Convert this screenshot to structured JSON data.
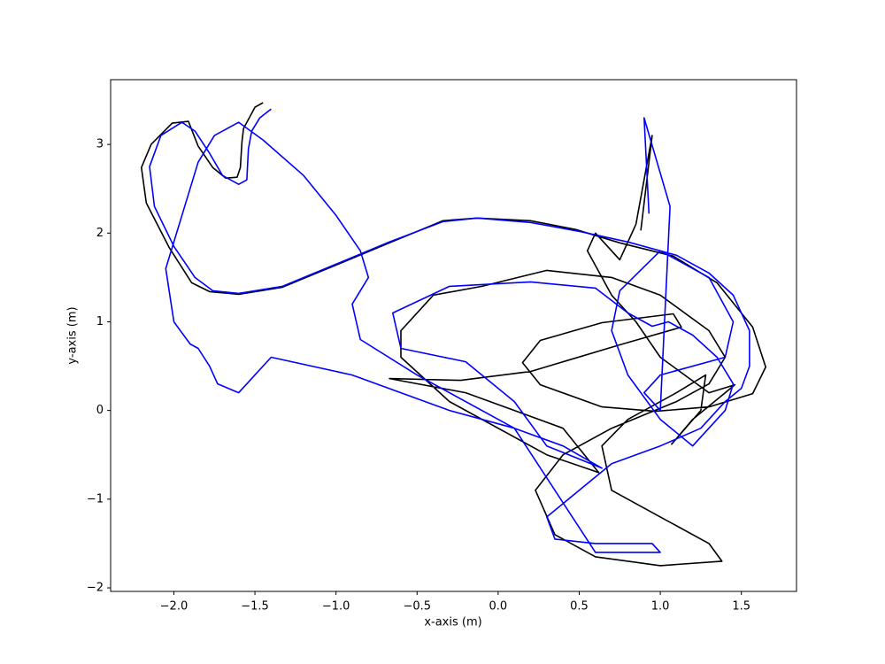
{
  "chart_data": {
    "type": "line",
    "x_label": "x-axis (m)",
    "y_label": "y-axis (m)",
    "xlim": [
      -2.39,
      1.84
    ],
    "ylim": [
      -2.04,
      3.73
    ],
    "xticks": [
      {
        "value": -2.0,
        "label": "−2.0"
      },
      {
        "value": -1.5,
        "label": "−1.5"
      },
      {
        "value": -1.0,
        "label": "−1.0"
      },
      {
        "value": -0.5,
        "label": "−0.5"
      },
      {
        "value": 0,
        "label": "0.0"
      },
      {
        "value": 0.5,
        "label": "0.5"
      },
      {
        "value": 1.0,
        "label": "1.0"
      },
      {
        "value": 1.5,
        "label": "1.5"
      }
    ],
    "yticks": [
      {
        "value": -2,
        "label": "−2"
      },
      {
        "value": -1,
        "label": "−1"
      },
      0,
      1,
      2,
      3
    ],
    "grid": false,
    "series": [
      {
        "color": "#000000",
        "x": [
          -1.45,
          -1.5,
          -1.57,
          -1.58,
          -1.59,
          -1.61,
          -1.68,
          -1.76,
          -1.85,
          -1.91,
          -2.01,
          -2.14,
          -2.2,
          -2.17,
          -2.03,
          -1.89,
          -1.78,
          -1.6,
          -1.33,
          -1.0,
          -0.67,
          -0.34,
          -0.13,
          0.2,
          0.48,
          0.75,
          1.08,
          1.35,
          1.57,
          1.65,
          1.57,
          1.3,
          0.97,
          0.64,
          0.26,
          0.15,
          0.26,
          0.64,
          1.08,
          1.13,
          0.75,
          0.2,
          -0.23,
          -0.67,
          -0.2,
          0.1,
          0.4,
          0.62,
          0.3,
          -0.3,
          -0.6,
          -0.6,
          -0.4,
          -0.1,
          0.3,
          0.7,
          1.0,
          1.3,
          1.4,
          1.3,
          1.1,
          0.7,
          0.4,
          0.23,
          0.35,
          0.6,
          1.0,
          1.38,
          1.3,
          1.0,
          0.7,
          0.64,
          0.8,
          1.1,
          1.28,
          1.25,
          1.07,
          1.2,
          1.46,
          1.3,
          1.0,
          0.85,
          0.7,
          0.55,
          0.6,
          0.75,
          0.85,
          0.95,
          0.88
        ],
        "y": [
          3.47,
          3.42,
          3.18,
          3.03,
          2.74,
          2.63,
          2.62,
          2.74,
          2.98,
          3.26,
          3.24,
          3.0,
          2.74,
          2.34,
          1.84,
          1.44,
          1.34,
          1.31,
          1.39,
          1.64,
          1.89,
          2.14,
          2.17,
          2.14,
          2.04,
          1.89,
          1.74,
          1.44,
          0.94,
          0.49,
          0.19,
          0.04,
          -0.01,
          0.04,
          0.29,
          0.54,
          0.79,
          0.99,
          1.09,
          0.94,
          0.74,
          0.44,
          0.34,
          0.36,
          0.2,
          0.0,
          -0.2,
          -0.7,
          -0.5,
          0.1,
          0.6,
          0.9,
          1.3,
          1.4,
          1.58,
          1.5,
          1.3,
          0.9,
          0.6,
          0.3,
          0.1,
          -0.2,
          -0.5,
          -0.9,
          -1.4,
          -1.65,
          -1.75,
          -1.7,
          -1.5,
          -1.2,
          -0.9,
          -0.4,
          -0.1,
          0.2,
          0.4,
          0.0,
          -0.38,
          -0.1,
          0.29,
          0.2,
          0.6,
          1.0,
          1.3,
          1.8,
          2.0,
          1.7,
          2.1,
          3.1,
          2.03
        ]
      },
      {
        "color": "#0000ff",
        "x": [
          -1.4,
          -1.47,
          -1.52,
          -1.54,
          -1.55,
          -1.6,
          -1.7,
          -1.78,
          -1.87,
          -1.95,
          -2.08,
          -2.15,
          -2.12,
          -2.0,
          -1.87,
          -1.76,
          -1.6,
          -1.33,
          -1.0,
          -0.67,
          -0.34,
          -0.13,
          0.2,
          0.5,
          0.8,
          1.1,
          1.3,
          1.45,
          1.55,
          1.55,
          1.5,
          1.4,
          1.25,
          1.0,
          0.7,
          0.5,
          0.3,
          0.35,
          0.6,
          0.95,
          1.0,
          0.6,
          0.1,
          -0.5,
          -0.85,
          -0.9,
          -0.8,
          -0.85,
          -1.0,
          -1.2,
          -1.45,
          -1.6,
          -1.75,
          -1.85,
          -1.95,
          -2.05,
          -2.0,
          -1.9,
          -1.85,
          -1.78,
          -1.73,
          -1.6,
          -1.4,
          -0.9,
          -0.3,
          0.1,
          0.4,
          0.64,
          0.3,
          0.1,
          -0.2,
          -0.6,
          -0.65,
          -0.3,
          0.2,
          0.6,
          0.8,
          0.95,
          1.05,
          1.2,
          1.35,
          1.45,
          1.4,
          1.2,
          1.0,
          0.8,
          0.7,
          0.75,
          1.0,
          1.3,
          1.45,
          1.4,
          1.0,
          0.9,
          1.0,
          1.06,
          0.9,
          0.93
        ],
        "y": [
          3.4,
          3.3,
          3.15,
          2.95,
          2.6,
          2.55,
          2.65,
          2.9,
          3.15,
          3.25,
          3.1,
          2.75,
          2.3,
          1.85,
          1.5,
          1.35,
          1.32,
          1.4,
          1.65,
          1.9,
          2.13,
          2.17,
          2.12,
          2.02,
          1.9,
          1.75,
          1.55,
          1.3,
          0.9,
          0.5,
          0.25,
          0.1,
          -0.2,
          -0.4,
          -0.6,
          -0.9,
          -1.2,
          -1.45,
          -1.5,
          -1.5,
          -1.6,
          -1.6,
          -0.2,
          0.4,
          0.8,
          1.2,
          1.5,
          1.8,
          2.2,
          2.65,
          3.05,
          3.25,
          3.1,
          2.8,
          2.2,
          1.6,
          1.0,
          0.75,
          0.7,
          0.5,
          0.3,
          0.2,
          0.6,
          0.4,
          0.0,
          -0.2,
          -0.4,
          -0.65,
          -0.4,
          0.1,
          0.55,
          0.7,
          1.1,
          1.4,
          1.45,
          1.38,
          1.1,
          0.95,
          1.0,
          0.85,
          0.6,
          0.3,
          0.0,
          -0.4,
          -0.1,
          0.4,
          0.9,
          1.35,
          1.8,
          1.5,
          1.0,
          0.6,
          0.4,
          0.2,
          0.0,
          2.3,
          3.3,
          2.22
        ]
      }
    ]
  }
}
